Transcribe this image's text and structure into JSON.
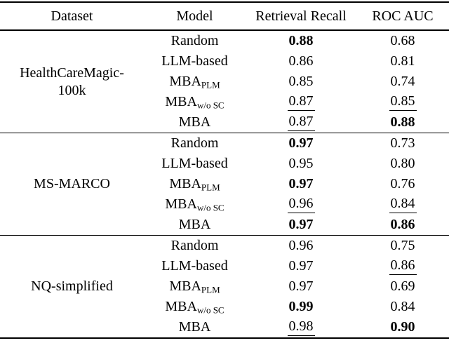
{
  "table": {
    "columns": [
      "Dataset",
      "Model",
      "Retrieval Recall",
      "ROC AUC"
    ],
    "groups": [
      {
        "dataset_lines": [
          "HealthCareMagic-",
          "100k"
        ],
        "rows": [
          {
            "model": {
              "base": "Random",
              "sub": ""
            },
            "recall": {
              "value": "0.88",
              "style": "bold"
            },
            "auc": {
              "value": "0.68",
              "style": "plain"
            }
          },
          {
            "model": {
              "base": "LLM-based",
              "sub": ""
            },
            "recall": {
              "value": "0.86",
              "style": "plain"
            },
            "auc": {
              "value": "0.81",
              "style": "plain"
            }
          },
          {
            "model": {
              "base": "MBA",
              "sub": "PLM"
            },
            "recall": {
              "value": "0.85",
              "style": "plain"
            },
            "auc": {
              "value": "0.74",
              "style": "plain"
            }
          },
          {
            "model": {
              "base": "MBA",
              "sub": "w/o SC"
            },
            "recall": {
              "value": "0.87",
              "style": "underline"
            },
            "auc": {
              "value": "0.85",
              "style": "underline"
            }
          },
          {
            "model": {
              "base": "MBA",
              "sub": ""
            },
            "recall": {
              "value": "0.87",
              "style": "underline"
            },
            "auc": {
              "value": "0.88",
              "style": "bold"
            }
          }
        ]
      },
      {
        "dataset_lines": [
          "MS-MARCO"
        ],
        "rows": [
          {
            "model": {
              "base": "Random",
              "sub": ""
            },
            "recall": {
              "value": "0.97",
              "style": "bold"
            },
            "auc": {
              "value": "0.73",
              "style": "plain"
            }
          },
          {
            "model": {
              "base": "LLM-based",
              "sub": ""
            },
            "recall": {
              "value": "0.95",
              "style": "plain"
            },
            "auc": {
              "value": "0.80",
              "style": "plain"
            }
          },
          {
            "model": {
              "base": "MBA",
              "sub": "PLM"
            },
            "recall": {
              "value": "0.97",
              "style": "bold"
            },
            "auc": {
              "value": "0.76",
              "style": "plain"
            }
          },
          {
            "model": {
              "base": "MBA",
              "sub": "w/o SC"
            },
            "recall": {
              "value": "0.96",
              "style": "underline"
            },
            "auc": {
              "value": "0.84",
              "style": "underline"
            }
          },
          {
            "model": {
              "base": "MBA",
              "sub": ""
            },
            "recall": {
              "value": "0.97",
              "style": "bold"
            },
            "auc": {
              "value": "0.86",
              "style": "bold"
            }
          }
        ]
      },
      {
        "dataset_lines": [
          "NQ-simplified"
        ],
        "rows": [
          {
            "model": {
              "base": "Random",
              "sub": ""
            },
            "recall": {
              "value": "0.96",
              "style": "plain"
            },
            "auc": {
              "value": "0.75",
              "style": "plain"
            }
          },
          {
            "model": {
              "base": "LLM-based",
              "sub": ""
            },
            "recall": {
              "value": "0.97",
              "style": "plain"
            },
            "auc": {
              "value": "0.86",
              "style": "underline"
            }
          },
          {
            "model": {
              "base": "MBA",
              "sub": "PLM"
            },
            "recall": {
              "value": "0.97",
              "style": "plain"
            },
            "auc": {
              "value": "0.69",
              "style": "plain"
            }
          },
          {
            "model": {
              "base": "MBA",
              "sub": "w/o SC"
            },
            "recall": {
              "value": "0.99",
              "style": "bold"
            },
            "auc": {
              "value": "0.84",
              "style": "plain"
            }
          },
          {
            "model": {
              "base": "MBA",
              "sub": ""
            },
            "recall": {
              "value": "0.98",
              "style": "underline"
            },
            "auc": {
              "value": "0.90",
              "style": "bold"
            }
          }
        ]
      }
    ]
  }
}
